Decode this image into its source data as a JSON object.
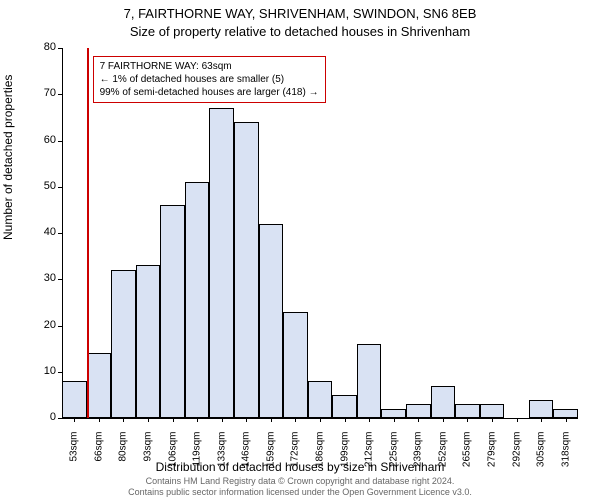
{
  "chart": {
    "title_line1": "7, FAIRTHORNE WAY, SHRIVENHAM, SWINDON, SN6 8EB",
    "title_line2": "Size of property relative to detached houses in Shrivenham",
    "xlabel": "Distribution of detached houses by size in Shrivenham",
    "ylabel": "Number of detached properties",
    "type": "histogram",
    "bar_fill": "#d9e2f3",
    "bar_border": "#000000",
    "background": "#ffffff",
    "ylim": [
      0,
      80
    ],
    "ytick_step": 10,
    "x_categories": [
      "53sqm",
      "66sqm",
      "80sqm",
      "93sqm",
      "106sqm",
      "119sqm",
      "133sqm",
      "146sqm",
      "159sqm",
      "172sqm",
      "186sqm",
      "199sqm",
      "212sqm",
      "225sqm",
      "239sqm",
      "252sqm",
      "265sqm",
      "279sqm",
      "292sqm",
      "305sqm",
      "318sqm"
    ],
    "values": [
      8,
      14,
      32,
      33,
      46,
      51,
      67,
      64,
      42,
      23,
      8,
      5,
      16,
      2,
      3,
      7,
      3,
      3,
      0,
      4,
      2
    ],
    "marker": {
      "x_index": 1,
      "color": "#cc0000",
      "width": 2
    },
    "annotation": {
      "line1": "7 FAIRTHORNE WAY: 63sqm",
      "line2": "← 1% of detached houses are smaller (5)",
      "line3": "99% of semi-detached houses are larger (418) →",
      "border_color": "#cc0000",
      "text_color": "#000000",
      "bg": "#ffffff"
    },
    "footer_line1": "Contains HM Land Registry data © Crown copyright and database right 2024.",
    "footer_line2": "Contains public sector information licensed under the Open Government Licence v3.0."
  }
}
